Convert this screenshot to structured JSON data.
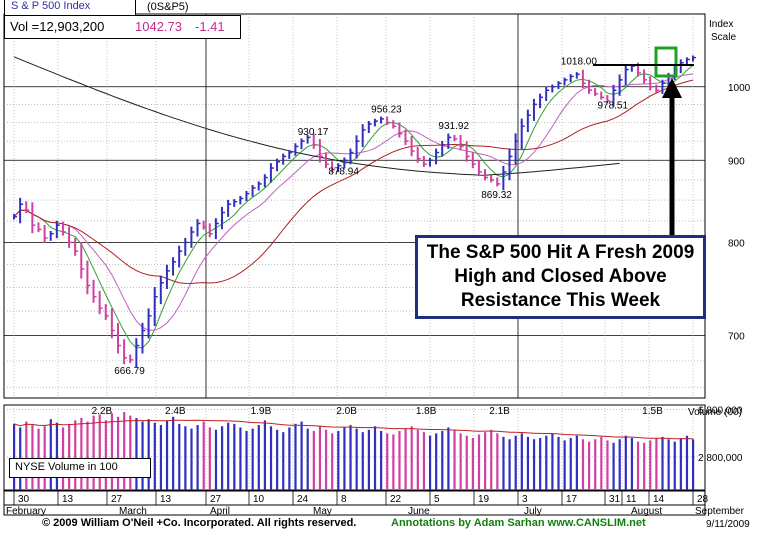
{
  "header": {
    "title": "S & P 500 Index",
    "symbol": "(0S&P5)",
    "volume_label": "Vol =12,903,200",
    "price": "1042.73",
    "change": "-1.41"
  },
  "callout": {
    "lines": [
      "The S&P 500 Hit A Fresh 2009",
      "High and Closed Above",
      "Resistance This Week"
    ]
  },
  "footer": {
    "copyright": "© 2009 William O'Neil +Co. Incorporated. All rights reserved.",
    "annotation": "Annotations by Adam Sarhan www.CANSLIM.net",
    "date": "9/11/2009"
  },
  "colors": {
    "up_bar": "#3030c0",
    "down_bar": "#d040a0",
    "ma_short": "#30a030",
    "ma_mid": "#c060c0",
    "ma_long": "#b02020",
    "ma_200": "#202020",
    "volume_avg": "#c02020",
    "callout_border": "#1f2f80",
    "highlight_box": "#20a020",
    "price_text": "#c0308a",
    "footer_green": "#108010"
  },
  "chart_data": [
    {
      "type": "bar",
      "title": "S & P 500 Index",
      "ylabel": "Index Scale",
      "scale": "log",
      "ylim": [
        640,
        1110
      ],
      "y_ticks": [
        "1000",
        "900",
        "800",
        "700"
      ],
      "x_ticks": [
        "30",
        "13",
        "27",
        "13",
        "27",
        "10",
        "24",
        "8",
        "22",
        "5",
        "19",
        "3",
        "17",
        "31",
        "14",
        "28",
        "11"
      ],
      "months": [
        "February",
        "March",
        "April",
        "May",
        "June",
        "July",
        "August",
        "September"
      ],
      "period": "weekly-style daily bars, Feb 2009 – Sep 11 2009",
      "annotations": [
        "666.79",
        "930.17",
        "878.94",
        "956.23",
        "931.92",
        "869.32",
        "1018.00",
        "978.51"
      ],
      "closes": [
        830,
        845,
        838,
        820,
        815,
        805,
        810,
        820,
        812,
        800,
        790,
        770,
        752,
        740,
        728,
        720,
        705,
        690,
        678,
        676,
        690,
        705,
        720,
        740,
        755,
        768,
        778,
        790,
        800,
        812,
        822,
        818,
        810,
        822,
        835,
        845,
        848,
        852,
        858,
        865,
        870,
        878,
        890,
        898,
        905,
        910,
        918,
        925,
        930,
        920,
        905,
        895,
        888,
        893,
        900,
        910,
        925,
        940,
        948,
        952,
        955,
        950,
        945,
        935,
        925,
        912,
        902,
        895,
        900,
        910,
        920,
        930,
        928,
        918,
        905,
        895,
        885,
        878,
        875,
        870,
        885,
        905,
        925,
        945,
        960,
        975,
        985,
        995,
        1000,
        1005,
        1010,
        1015,
        1018,
        1005,
        995,
        990,
        985,
        980,
        995,
        1010,
        1025,
        1030,
        1020,
        1010,
        1000,
        995,
        1005,
        1015,
        1025,
        1035,
        1040,
        1042.73
      ]
    },
    {
      "type": "bar",
      "title": "Volume (00)",
      "series_label": "NYSE Volume in 100",
      "y_ticks": [
        "6,800,000",
        "2,800,000"
      ],
      "annotations": [
        "2.2B",
        "2.4B",
        "1.9B",
        "2.0B",
        "1.8B",
        "2.1B",
        "1.5B"
      ],
      "values": [
        5.6,
        5.3,
        5.8,
        5.5,
        5.2,
        5.4,
        6.0,
        5.7,
        5.3,
        5.6,
        5.9,
        6.1,
        5.8,
        6.3,
        6.4,
        5.9,
        6.5,
        6.2,
        6.6,
        6.3,
        6.1,
        5.8,
        6.0,
        5.7,
        5.5,
        5.9,
        6.2,
        5.6,
        5.4,
        5.2,
        5.5,
        5.8,
        5.3,
        5.1,
        5.4,
        5.7,
        5.6,
        5.3,
        5.0,
        5.2,
        5.5,
        5.9,
        5.4,
        5.1,
        4.9,
        5.3,
        5.6,
        5.8,
        5.2,
        5.0,
        5.4,
        5.1,
        4.8,
        5.0,
        5.3,
        5.5,
        5.2,
        4.9,
        5.1,
        5.4,
        5.0,
        4.8,
        4.7,
        5.0,
        5.2,
        5.4,
        5.1,
        4.9,
        4.6,
        4.8,
        5.0,
        5.3,
        5.1,
        4.8,
        4.6,
        4.4,
        4.7,
        4.9,
        5.1,
        4.8,
        4.5,
        4.3,
        4.6,
        4.8,
        4.5,
        4.3,
        4.4,
        4.6,
        4.8,
        4.5,
        4.2,
        4.4,
        4.6,
        4.3,
        4.1,
        4.3,
        4.5,
        4.2,
        4.0,
        4.3,
        4.6,
        4.4,
        4.1,
        4.0,
        4.2,
        4.4,
        4.5,
        4.3,
        4.1,
        4.4,
        4.6,
        4.3
      ]
    }
  ]
}
